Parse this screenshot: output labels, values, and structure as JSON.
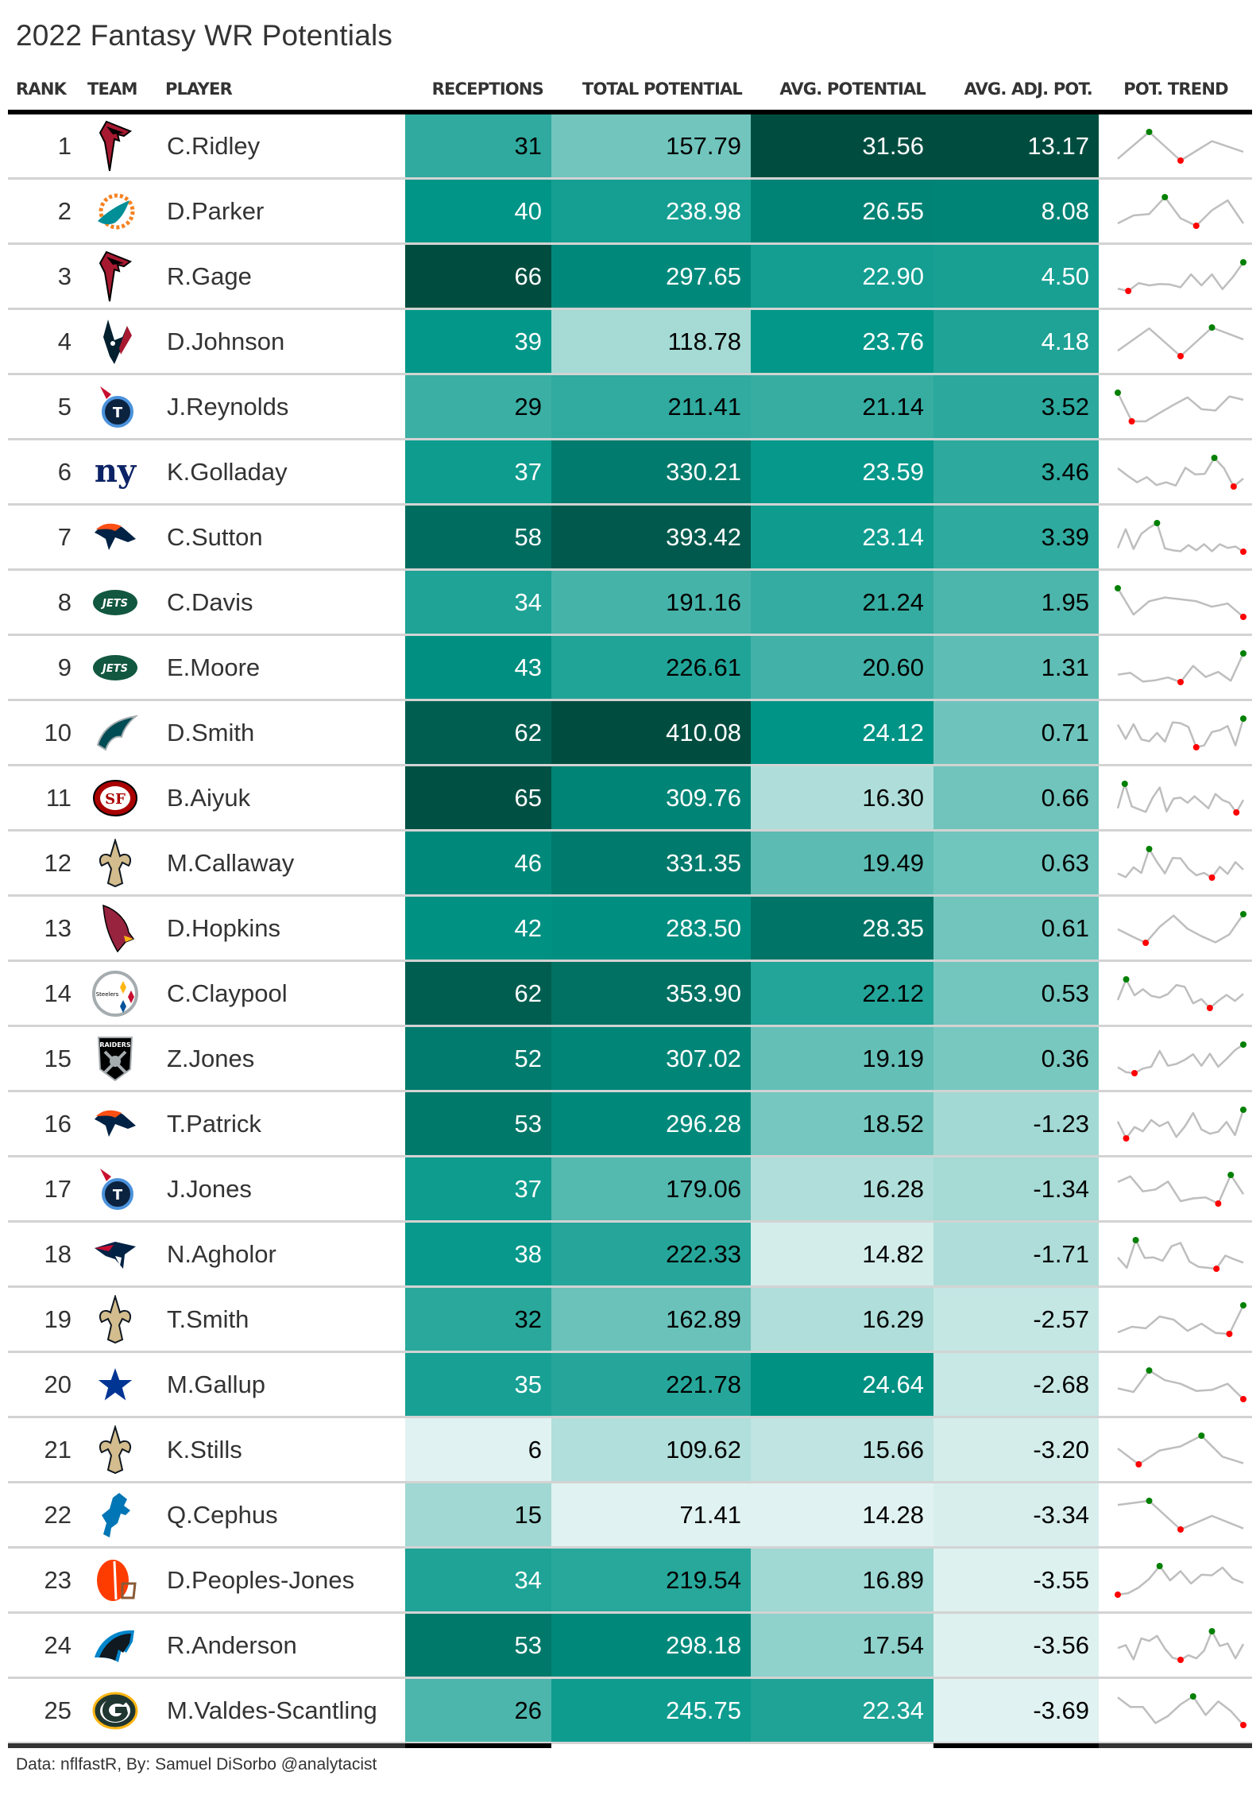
{
  "title": "2022 Fantasy WR Potentials",
  "footer": "Data: nflfastR, By: Samuel DiSorbo @analytacist",
  "colors": {
    "scale": [
      "#e0f2f1",
      "#b2dfdb",
      "#80cbc4",
      "#4db6ac",
      "#26a69a",
      "#009688",
      "#00897b",
      "#00796b",
      "#00695c",
      "#004d40"
    ],
    "trend_line": "#bebebe",
    "trend_max": "#008000",
    "trend_min": "#ff0000",
    "divider": "#d3d3d3",
    "text": "#333333"
  },
  "columns": {
    "rank": "RANK",
    "team": "TEAM",
    "player": "PLAYER",
    "receptions": "RECEPTIONS",
    "total": "TOTAL POTENTIAL",
    "avg": "AVG. POTENTIAL",
    "adj": "AVG. ADJ. POT.",
    "trend": "POT. TREND"
  },
  "chart_data": {
    "type": "table",
    "title": "2022 Fantasy WR Potentials",
    "rows": [
      {
        "rank": "1",
        "team": "ATL",
        "player": "C.Ridley",
        "receptions": "31",
        "total": "157.79",
        "avg": "31.56",
        "adj": "13.17",
        "trend": [
          47,
          105,
          43,
          85,
          62
        ]
      },
      {
        "rank": "2",
        "team": "MIA",
        "player": "D.Parker",
        "receptions": "40",
        "total": "238.98",
        "avg": "26.55",
        "adj": "8.08",
        "trend": [
          102,
          119,
          122,
          158,
          113,
          97,
          130,
          151,
          102
        ]
      },
      {
        "rank": "3",
        "team": "ATL",
        "player": "R.Gage",
        "receptions": "66",
        "total": "297.65",
        "avg": "22.90",
        "adj": "4.50",
        "trend": [
          55,
          50,
          67,
          62,
          65,
          64,
          58,
          86,
          62,
          86,
          54,
          80,
          112
        ]
      },
      {
        "rank": "4",
        "team": "HOU",
        "player": "D.Johnson",
        "receptions": "39",
        "total": "118.78",
        "avg": "23.76",
        "adj": "4.18",
        "trend": [
          67,
          116,
          55,
          118,
          92
        ]
      },
      {
        "rank": "5",
        "team": "TEN",
        "player": "J.Reynolds",
        "receptions": "29",
        "total": "211.41",
        "avg": "21.14",
        "adj": "3.52",
        "trend": [
          120,
          59,
          59,
          77,
          94,
          110,
          85,
          82,
          112,
          105
        ]
      },
      {
        "rank": "6",
        "team": "NYG",
        "player": "K.Golladay",
        "receptions": "37",
        "total": "330.21",
        "avg": "23.59",
        "adj": "3.46",
        "trend": [
          102,
          86,
          72,
          83,
          66,
          72,
          65,
          103,
          89,
          90,
          124,
          102,
          63,
          80
        ]
      },
      {
        "rank": "7",
        "team": "DEN",
        "player": "C.Sutton",
        "receptions": "58",
        "total": "393.42",
        "avg": "23.14",
        "adj": "3.39",
        "trend": [
          95,
          135,
          93,
          125,
          138,
          148,
          94,
          90,
          88,
          101,
          90,
          103,
          88,
          103,
          95,
          98,
          87
        ]
      },
      {
        "rank": "8",
        "team": "NYJ",
        "player": "C.Davis",
        "receptions": "34",
        "total": "191.16",
        "avg": "21.24",
        "adj": "1.95",
        "trend": [
          152,
          95,
          124,
          132,
          128,
          124,
          112,
          119,
          90
        ]
      },
      {
        "rank": "9",
        "team": "NYJ",
        "player": "E.Moore",
        "receptions": "43",
        "total": "226.61",
        "avg": "20.60",
        "adj": "1.31",
        "trend": [
          110,
          114,
          95,
          98,
          104,
          94,
          129,
          105,
          116,
          97,
          156
        ]
      },
      {
        "rank": "10",
        "team": "PHI",
        "player": "D.Smith",
        "receptions": "62",
        "total": "410.08",
        "avg": "24.12",
        "adj": "0.71",
        "trend": [
          147,
          116,
          148,
          115,
          111,
          129,
          110,
          152,
          150,
          142,
          98,
          102,
          131,
          135,
          144,
          102,
          160
        ]
      },
      {
        "rank": "11",
        "team": "SF",
        "player": "B.Aiyuk",
        "receptions": "65",
        "total": "309.76",
        "avg": "16.30",
        "adj": "0.66",
        "trend": [
          112,
          165,
          116,
          110,
          104,
          135,
          157,
          105,
          133,
          135,
          124,
          138,
          125,
          112,
          143,
          130,
          124,
          103,
          130
        ]
      },
      {
        "rank": "12",
        "team": "NO",
        "player": "M.Callaway",
        "receptions": "46",
        "total": "331.35",
        "avg": "19.49",
        "adj": "0.63",
        "trend": [
          116,
          108,
          129,
          117,
          168,
          140,
          116,
          149,
          148,
          126,
          112,
          117,
          107,
          130,
          115,
          140,
          124
        ]
      },
      {
        "rank": "13",
        "team": "ARI",
        "player": "D.Hopkins",
        "receptions": "42",
        "total": "283.50",
        "avg": "28.35",
        "adj": "0.61",
        "trend": [
          125,
          110,
          96,
          130,
          154,
          126,
          110,
          97,
          114,
          157
        ]
      },
      {
        "rank": "14",
        "team": "PIT",
        "player": "C.Claypool",
        "receptions": "62",
        "total": "353.90",
        "avg": "22.12",
        "adj": "0.53",
        "trend": [
          117,
          161,
          127,
          140,
          126,
          122,
          130,
          149,
          145,
          110,
          119,
          100,
          115,
          128,
          115,
          130
        ]
      },
      {
        "rank": "15",
        "team": "LV",
        "player": "Z.Jones",
        "receptions": "52",
        "total": "307.02",
        "avg": "19.19",
        "adj": "0.36",
        "trend": [
          117,
          106,
          104,
          114,
          118,
          152,
          120,
          124,
          133,
          145,
          120,
          146,
          118,
          135,
          154,
          166
        ]
      },
      {
        "rank": "16",
        "team": "DEN",
        "player": "T.Patrick",
        "receptions": "53",
        "total": "296.28",
        "avg": "18.52",
        "adj": "-1.23",
        "trend": [
          144,
          108,
          132,
          123,
          147,
          134,
          143,
          111,
          133,
          162,
          127,
          118,
          122,
          143,
          115,
          169
        ]
      },
      {
        "rank": "17",
        "team": "TEN",
        "player": "J.Jones",
        "receptions": "37",
        "total": "179.06",
        "avg": "16.28",
        "adj": "-1.34",
        "trend": [
          158,
          170,
          138,
          142,
          159,
          117,
          123,
          125,
          112,
          173,
          132
        ]
      },
      {
        "rank": "18",
        "team": "NE",
        "player": "N.Agholor",
        "receptions": "38",
        "total": "222.33",
        "avg": "14.82",
        "adj": "-1.71",
        "trend": [
          140,
          118,
          177,
          139,
          140,
          133,
          164,
          171,
          131,
          120,
          118,
          116,
          144,
          136,
          129
        ]
      },
      {
        "rank": "19",
        "team": "NO",
        "player": "T.Smith",
        "receptions": "32",
        "total": "162.89",
        "avg": "16.29",
        "adj": "-2.57",
        "trend": [
          108,
          119,
          116,
          139,
          133,
          111,
          125,
          107,
          105,
          161
        ]
      },
      {
        "rank": "20",
        "team": "DAL",
        "player": "M.Gallup",
        "receptions": "35",
        "total": "221.78",
        "avg": "24.64",
        "adj": "-2.68",
        "trend": [
          104,
          97,
          139,
          120,
          113,
          99,
          101,
          113,
          83
        ]
      },
      {
        "rank": "21",
        "team": "NO",
        "player": "K.Stills",
        "receptions": "6",
        "total": "109.62",
        "avg": "15.66",
        "adj": "-3.20",
        "trend": [
          143,
          112,
          139,
          147,
          168,
          127,
          114
        ]
      },
      {
        "rank": "22",
        "team": "DET",
        "player": "Q.Cephus",
        "receptions": "15",
        "total": "71.41",
        "avg": "14.28",
        "adj": "-3.34",
        "trend": [
          139,
          147,
          90,
          117,
          92
        ]
      },
      {
        "rank": "23",
        "team": "CLE",
        "player": "D.Peoples-Jones",
        "receptions": "34",
        "total": "219.54",
        "avg": "16.89",
        "adj": "-3.55",
        "trend": [
          119,
          122,
          133,
          150,
          175,
          147,
          165,
          141,
          158,
          157,
          172,
          150,
          142
        ]
      },
      {
        "rank": "24",
        "team": "CAR",
        "player": "R.Anderson",
        "receptions": "53",
        "total": "298.18",
        "avg": "17.54",
        "adj": "-3.56",
        "trend": [
          170,
          176,
          148,
          189,
          184,
          194,
          169,
          151,
          147,
          156,
          150,
          165,
          203,
          174,
          179,
          150,
          178
        ]
      },
      {
        "rank": "25",
        "team": "GB",
        "player": "M.Valdes-Scantling",
        "receptions": "26",
        "total": "245.75",
        "avg": "22.34",
        "adj": "-3.69",
        "trend": [
          180,
          161,
          161,
          129,
          143,
          166,
          182,
          145,
          172,
          153,
          125
        ]
      }
    ]
  }
}
